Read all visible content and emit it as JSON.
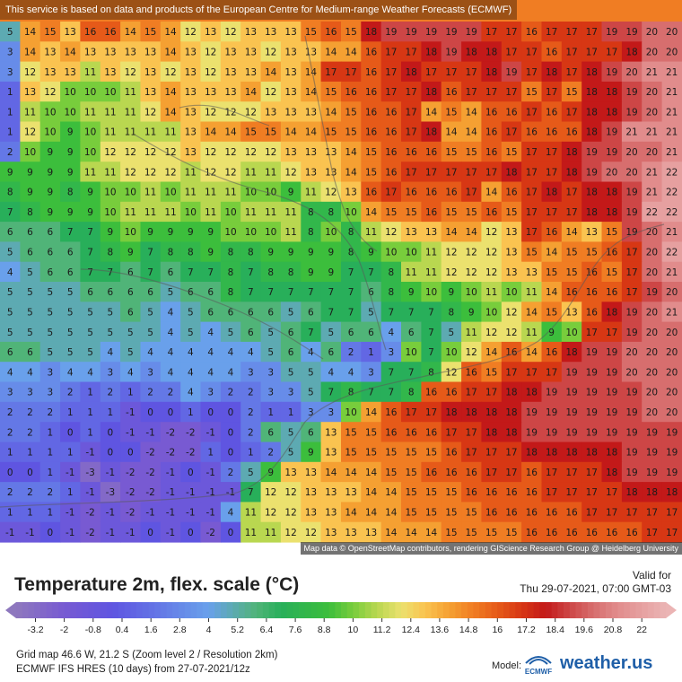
{
  "notice": "This service is based on data and products of the European Centre for Medium-range Weather Forecasts (ECMWF)",
  "attribution": "Map data © OpenStreetMap contributors, rendering GIScience Research Group @ Heidelberg University",
  "map_grid": {
    "rows": [
      "5 14 15 13 16 16 14 15 14 12 13 12 13 13 13 15 16 15 18 19 19 19 19 19 17 17 16 17 17 17 19 19 20 20",
      "3 14 13 14 13 13 13 13 14 13 12 13 13 12 13 13 14 14 16 17 17 18 19 18 18 17 17 16 17 17 17 18 20 20",
      "3 12 13 13 11 13 12 13 12 13 12 13 13 14 13 14 17 17 16 17 18 17 17 17 18 19 17 18 17 18 19 20 21 21",
      "1 13 12 10 10 10 11 13 14 13 13 13 14 12 13 14 15 16 16 17 17 18 16 17 17 17 15 17 15 18 18 19 20 21",
      "1 11 10 10 11 11 11 12 14 13 12 12 12 13 13 13 14 15 16 16 17 14 15 14 16 16 17 16 17 18 18 19 20 21",
      "1 12 10 9 10 11 11 11 11 13 14 14 15 15 14 14 15 15 16 16 17 18 14 14 16 17 16 16 16 18 19 21 21 21",
      "2 10 9 9 10 12 12 12 12 13 12 12 12 12 13 13 13 14 15 16 16 16 15 15 16 15 17 17 18 19 19 20 20 21",
      "9 9 9 9 11 11 12 12 12 11 12 12 11 11 12 13 13 14 15 16 17 17 17 17 17 18 17 17 18 19 20 20 21 22",
      "8 9 9 8 9 10 10 11 10 11 11 11 10 10 9 11 12 13 16 17 16 16 16 17 14 16 17 18 17 18 18 19 21 22",
      "7 8 9 9 9 10 11 11 11 10 11 10 11 11 11 8 8 10 14 15 15 16 15 15 16 15 17 17 17 18 18 19 22 22",
      "6 6 6 7 7 9 10 9 9 9 9 10 10 10 11 8 10 8 11 12 13 13 14 14 12 13 17 16 14 13 15 19 20 21",
      "5 6 6 6 7 8 9 7 8 8 9 8 8 9 9 9 9 8 9 10 10 11 12 12 12 13 15 14 15 15 16 17 20 22",
      "4 5 6 6 7 7 6 7 6 7 7 8 7 8 8 9 9 7 7 8 11 11 12 12 12 13 13 15 15 16 15 17 20 21",
      "5 5 5 5 6 6 6 6 5 6 6 8 7 7 7 7 7 7 6 8 9 10 9 10 11 10 11 14 16 16 16 17 19 20",
      "5 5 5 5 5 5 6 5 4 5 6 6 6 6 5 6 7 7 5 7 7 7 8 9 10 12 14 15 13 16 18 19 20 21",
      "5 5 5 5 5 5 5 5 4 5 4 5 6 5 6 7 5 6 6 4 6 7 5 11 12 12 11 9 10 17 17 19 20 20",
      "6 6 5 5 5 4 5 4 4 4 4 4 4 5 6 4 6 2 1 3 10 7 10 12 14 16 14 16 18 19 19 20 20 20",
      "4 4 3 4 4 3 4 3 4 4 4 4 3 3 5 5 4 4 3 7 7 8 12 16 15 17 17 17 19 19 19 20 20 20",
      "3 3 3 2 1 2 1 2 2 4 3 2 2 3 3 5 7 8 7 7 8 16 16 17 17 18 18 19 19 19 19 19 20 20",
      "2 2 2 1 1 1 -1 -0 0 1 0 0 2 1 1 3 3 10 14 16 17 17 18 18 18 18 19 19 19 19 19 19 20 20",
      "2 2 1 -0 1 -0 -1 -1 -2 -2 -1 -0 2 6 5 6 13 15 15 16 16 16 17 17 18 18 19 19 19 19 19 19 19 19",
      "1 1 1 1 -1 0 -0 -2 -2 -2 1 0 1 2 5 9 13 15 15 15 15 15 16 17 17 17 18 18 18 18 18 19 19 19",
      "-0 -0 1 -1 -3 -1 -2 -2 -1 -0 -1 2 5 9 13 13 14 14 14 15 15 16 16 16 17 17 16 17 17 17 18 19 19 19",
      "2 2 2 1 -1 -3 -2 -2 -1 -1 -1 -1 7 12 12 13 13 13 14 14 15 15 15 16 16 16 16 17 17 17 17 18 18 18",
      "1 1 1 -1 -2 -1 -2 -1 -1 -1 -1 4 11 12 12 13 13 14 14 14 15 15 15 15 16 16 16 16 16 17 17 17 17 17",
      "-1 -1 -0 -1 -2 -1 -1 0 -1 -0 -2 -0 11 11 12 12 13 13 13 14 14 14 15 15 15 15 16 16 16 16 16 16 17 17"
    ]
  },
  "footer": {
    "title": "Temperature 2m, flex. scale (°C)",
    "valid_label": "Valid for",
    "valid_time": "Thu 29-07-2021, 07:00 GMT-03",
    "grid_info": "Grid map 46.6 W, 21.2 S (Zoom level 2 / Resolution 2km)",
    "model_info": "ECMWF IFS HRES (10 days) from 27-07-2021/12z",
    "model_label": "Model:",
    "ecmwf_label": "ECMWF",
    "brand": "weather.us"
  },
  "scale": {
    "min": -4,
    "max": 23,
    "labels": [
      "-3.2",
      "-2",
      "-0.8",
      "0.4",
      "1.6",
      "2.8",
      "4",
      "5.2",
      "6.4",
      "7.6",
      "8.8",
      "10",
      "11.2",
      "12.4",
      "13.6",
      "14.8",
      "16",
      "17.2",
      "18.4",
      "19.6",
      "20.8",
      "22"
    ]
  }
}
